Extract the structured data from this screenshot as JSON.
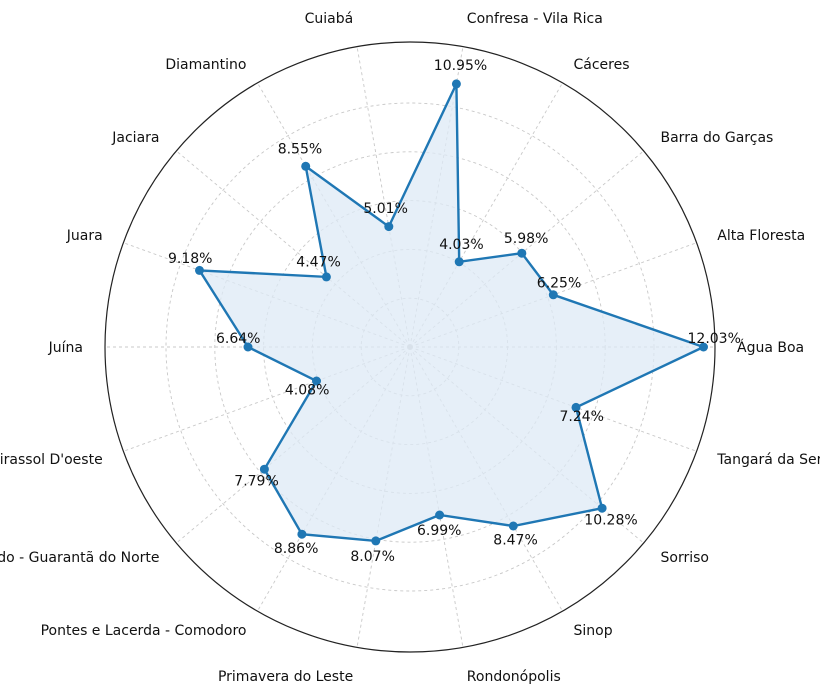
{
  "chart_data": {
    "type": "radar",
    "title": "",
    "rlim": [
      0,
      12.5
    ],
    "grid": true,
    "colors": {
      "line": "#1f77b4",
      "fill": "#dde9f5",
      "grid": "#c8c8c8",
      "outer": "#222222"
    },
    "categories": [
      "Água Boa",
      "Alta Floresta",
      "Barra do Garças",
      "Cáceres",
      "Confresa - Vila Rica",
      "Cuiabá",
      "Diamantino",
      "Jaciara",
      "Juara",
      "Juína",
      "Mirassol D'oeste",
      "Peixoto de Azevedo - Guarantã do Norte",
      "Pontes e Lacerda - Comodoro",
      "Primavera do Leste",
      "Rondonópolis",
      "Sinop",
      "Sorriso",
      "Tangará da Serra"
    ],
    "values": [
      12.03,
      6.25,
      5.98,
      4.03,
      10.95,
      5.01,
      8.55,
      4.47,
      9.18,
      6.64,
      4.08,
      7.79,
      8.86,
      8.07,
      6.99,
      8.47,
      10.28,
      7.24
    ],
    "value_labels": [
      "12.03%",
      "6.25%",
      "5.98%",
      "4.03%",
      "10.95%",
      "5.01%",
      "8.55%",
      "4.47%",
      "9.18%",
      "6.64%",
      "4.08%",
      "7.79%",
      "8.86%",
      "8.07%",
      "6.99%",
      "8.47%",
      "10.28%",
      "7.24%"
    ]
  }
}
